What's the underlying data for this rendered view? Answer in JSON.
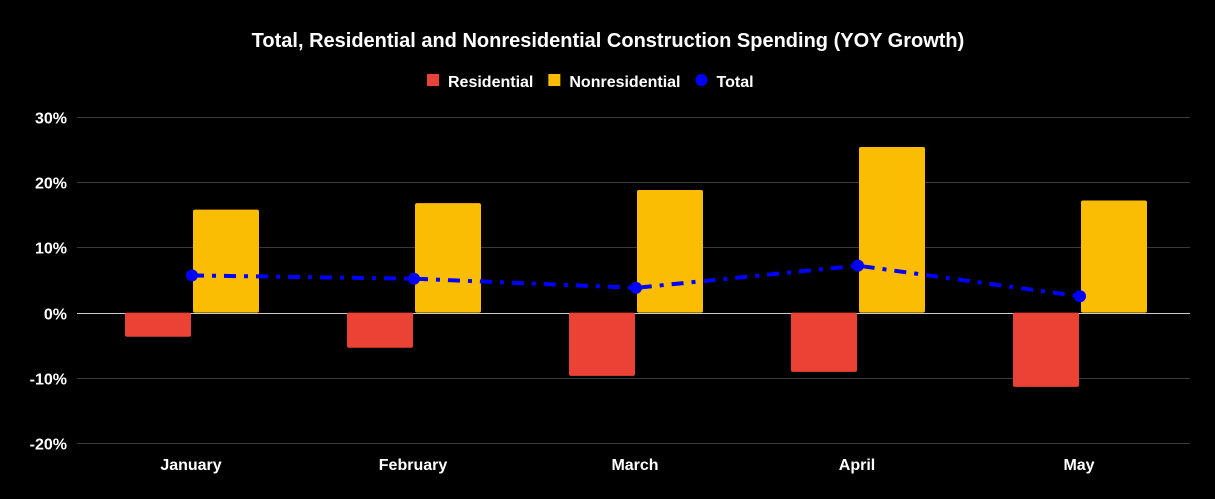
{
  "chart_data": {
    "type": "bar",
    "title": "Total, Residential and Nonresidential Construction Spending (YOY Growth)",
    "xlabel": "",
    "ylabel": "",
    "categories": [
      "January",
      "February",
      "March",
      "April",
      "May"
    ],
    "ylim": [
      -20,
      30
    ],
    "yticks": [
      30,
      20,
      10,
      0,
      -10,
      -20
    ],
    "ytick_labels": [
      "30%",
      "20%",
      "10%",
      "0%",
      "-10%",
      "-20%"
    ],
    "grid": true,
    "legend_position": "top-center",
    "series": [
      {
        "name": "Residential",
        "kind": "bar",
        "color": "#EA4335",
        "values": [
          -3.7,
          -5.4,
          -9.7,
          -9.1,
          -11.4
        ]
      },
      {
        "name": "Nonresidential",
        "kind": "bar",
        "color": "#FBBC04",
        "values": [
          15.8,
          16.8,
          18.8,
          25.4,
          17.2
        ]
      },
      {
        "name": "Total",
        "kind": "line",
        "style": "dash-dot",
        "marker": "circle",
        "color": "#0000FF",
        "values": [
          5.7,
          5.2,
          3.8,
          7.2,
          2.5
        ]
      }
    ]
  }
}
